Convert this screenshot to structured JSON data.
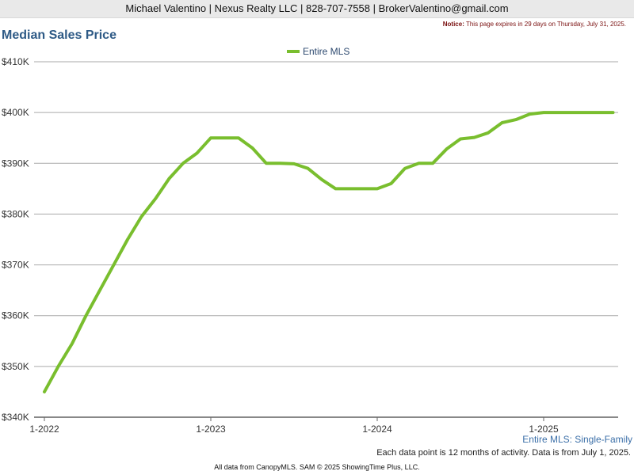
{
  "header": {
    "text": "Michael Valentino | Nexus Realty LLC | 828-707-7558 | BrokerValentino@gmail.com"
  },
  "notice": {
    "label": "Notice:",
    "text": "This page expires in 29 days on Thursday, July 31, 2025."
  },
  "footer": {
    "subtitle": "Entire MLS: Single-Family",
    "note": "Each data point is 12 months of activity. Data is from July 1, 2025.",
    "copyright": "All data from CanopyMLS. SAM © 2025 ShowingTime Plus, LLC."
  },
  "colors": {
    "series": "#79be2e",
    "title": "#2e5a86",
    "grid": "#aaaaaa"
  },
  "chart_data": {
    "type": "line",
    "title": "Median Sales Price",
    "xlabel": "",
    "ylabel": "",
    "ylim": [
      340000,
      410000
    ],
    "y_ticks": [
      340000,
      350000,
      360000,
      370000,
      380000,
      390000,
      400000,
      410000
    ],
    "y_tick_labels": [
      "$340K",
      "$350K",
      "$360K",
      "$370K",
      "$380K",
      "$390K",
      "$400K",
      "$410K"
    ],
    "x_tick_labels": [
      "1-2022",
      "1-2023",
      "1-2024",
      "1-2025"
    ],
    "grid": true,
    "legend": "top-center",
    "categories": [
      "1-2022",
      "2-2022",
      "3-2022",
      "4-2022",
      "5-2022",
      "6-2022",
      "7-2022",
      "8-2022",
      "9-2022",
      "10-2022",
      "11-2022",
      "12-2022",
      "1-2023",
      "2-2023",
      "3-2023",
      "4-2023",
      "5-2023",
      "6-2023",
      "7-2023",
      "8-2023",
      "9-2023",
      "10-2023",
      "11-2023",
      "12-2023",
      "1-2024",
      "2-2024",
      "3-2024",
      "4-2024",
      "5-2024",
      "6-2024",
      "7-2024",
      "8-2024",
      "9-2024",
      "10-2024",
      "11-2024",
      "12-2024",
      "1-2025",
      "2-2025",
      "3-2025",
      "4-2025",
      "5-2025",
      "6-2025"
    ],
    "series": [
      {
        "name": "Entire MLS",
        "values": [
          345000,
          350000,
          354500,
          360000,
          365000,
          370000,
          375000,
          379500,
          383000,
          387000,
          390000,
          392000,
          395000,
          395000,
          395000,
          393000,
          390000,
          390000,
          389900,
          389000,
          386800,
          385000,
          385000,
          385000,
          385000,
          386000,
          389000,
          390000,
          390000,
          392800,
          394800,
          395100,
          396000,
          398000,
          398600,
          399700,
          400000,
          400000,
          400000,
          400000,
          400000,
          400000
        ]
      }
    ]
  }
}
